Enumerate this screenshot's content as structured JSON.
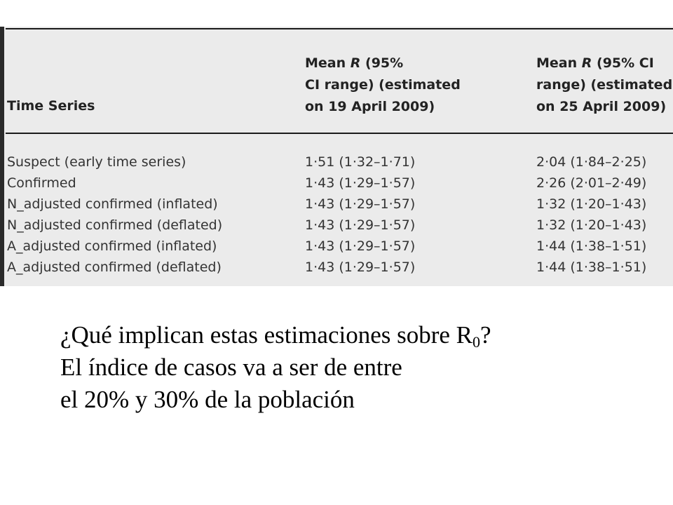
{
  "table": {
    "header": {
      "series": "Time Series",
      "col1": [
        "Mean R (95%",
        "CI range) (estimated",
        "on 19 April 2009)"
      ],
      "col2": [
        "Mean R (95% CI",
        "range) (estimated",
        "on 25 April 2009)"
      ]
    },
    "rows": [
      {
        "series": "Suspect (early time series)",
        "v1": "1·51 (1·32–1·71)",
        "v2": "2·04 (1·84–2·25)"
      },
      {
        "series": "Confirmed",
        "v1": "1·43 (1·29–1·57)",
        "v2": "2·26 (2·01–2·49)"
      },
      {
        "series": "N_adjusted confirmed (inflated)",
        "v1": "1·43 (1·29–1·57)",
        "v2": "1·32 (1·20–1·43)"
      },
      {
        "series": "N_adjusted confirmed (deflated)",
        "v1": "1·43 (1·29–1·57)",
        "v2": "1·32 (1·20–1·43)"
      },
      {
        "series": "A_adjusted confirmed (inflated)",
        "v1": "1·43 (1·29–1·57)",
        "v2": "1·44 (1·38–1·51)"
      },
      {
        "series": "A_adjusted confirmed (deflated)",
        "v1": "1·43 (1·29–1·57)",
        "v2": "1·44 (1·38–1·51)"
      }
    ]
  },
  "caption": {
    "line1_prefix": "¿Qué implican estas estimaciones sobre R",
    "line1_sub": "0",
    "line1_suffix": "?",
    "line2": "El índice de casos va a ser de entre",
    "line3": "el 20% y 30% de la población"
  }
}
